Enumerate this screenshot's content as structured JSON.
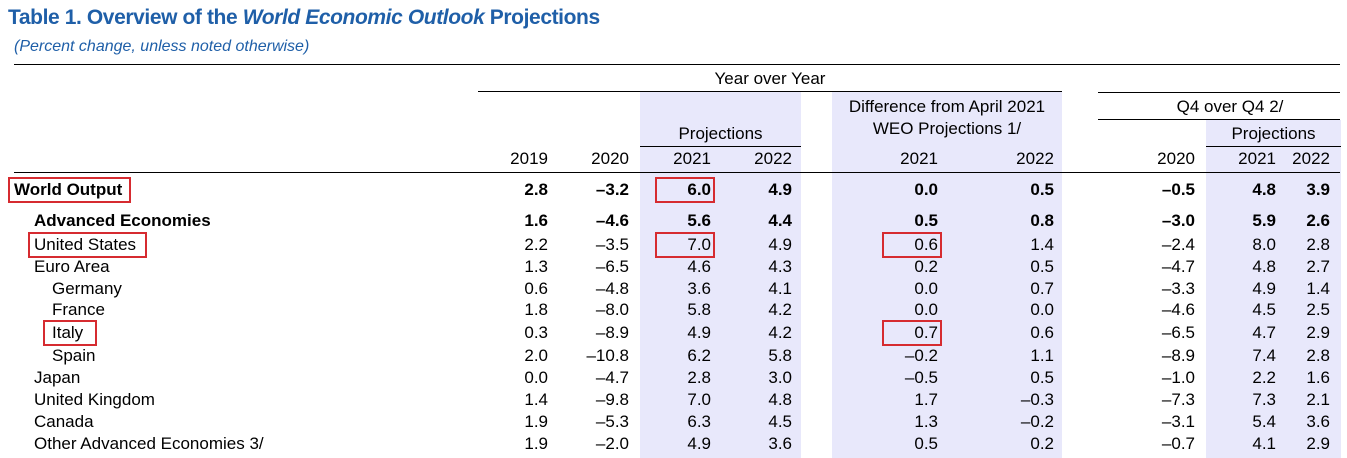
{
  "title": {
    "prefix": "Table 1. Overview of the ",
    "italic": "World Economic Outlook",
    "suffix": " Projections"
  },
  "subtitle": "(Percent change, unless noted otherwise)",
  "headers": {
    "yoy": "Year over Year",
    "diff_line1": "Difference from April 2021",
    "diff_line2": "WEO Projections 1/",
    "q4": "Q4 over Q4 2/",
    "projections": "Projections",
    "years": [
      "2019",
      "2020",
      "2021",
      "2022",
      "2021",
      "2022",
      "2020",
      "2021",
      "2022"
    ]
  },
  "rows": [
    {
      "label": "World Output",
      "bold": true,
      "indent": 0,
      "values": [
        "2.8",
        "–3.2",
        "6.0",
        "4.9",
        "0.0",
        "0.5",
        "–0.5",
        "4.8",
        "3.9"
      ]
    },
    {
      "label": "Advanced Economies",
      "bold": true,
      "indent": 1,
      "values": [
        "1.6",
        "–4.6",
        "5.6",
        "4.4",
        "0.5",
        "0.8",
        "–3.0",
        "5.9",
        "2.6"
      ]
    },
    {
      "label": "United States",
      "bold": false,
      "indent": 1,
      "values": [
        "2.2",
        "–3.5",
        "7.0",
        "4.9",
        "0.6",
        "1.4",
        "–2.4",
        "8.0",
        "2.8"
      ]
    },
    {
      "label": "Euro Area",
      "bold": false,
      "indent": 1,
      "values": [
        "1.3",
        "–6.5",
        "4.6",
        "4.3",
        "0.2",
        "0.5",
        "–4.7",
        "4.8",
        "2.7"
      ]
    },
    {
      "label": "Germany",
      "bold": false,
      "indent": 2,
      "values": [
        "0.6",
        "–4.8",
        "3.6",
        "4.1",
        "0.0",
        "0.7",
        "–3.3",
        "4.9",
        "1.4"
      ]
    },
    {
      "label": "France",
      "bold": false,
      "indent": 2,
      "values": [
        "1.8",
        "–8.0",
        "5.8",
        "4.2",
        "0.0",
        "0.0",
        "–4.6",
        "4.5",
        "2.5"
      ]
    },
    {
      "label": "Italy",
      "bold": false,
      "indent": 2,
      "values": [
        "0.3",
        "–8.9",
        "4.9",
        "4.2",
        "0.7",
        "0.6",
        "–6.5",
        "4.7",
        "2.9"
      ]
    },
    {
      "label": "Spain",
      "bold": false,
      "indent": 2,
      "values": [
        "2.0",
        "–10.8",
        "6.2",
        "5.8",
        "–0.2",
        "1.1",
        "–8.9",
        "7.4",
        "2.8"
      ]
    },
    {
      "label": "Japan",
      "bold": false,
      "indent": 1,
      "values": [
        "0.0",
        "–4.7",
        "2.8",
        "3.0",
        "–0.5",
        "0.5",
        "–1.0",
        "2.2",
        "1.6"
      ]
    },
    {
      "label": "United Kingdom",
      "bold": false,
      "indent": 1,
      "values": [
        "1.4",
        "–9.8",
        "7.0",
        "4.8",
        "1.7",
        "–0.3",
        "–7.3",
        "7.3",
        "2.1"
      ]
    },
    {
      "label": "Canada",
      "bold": false,
      "indent": 1,
      "values": [
        "1.9",
        "–5.3",
        "6.3",
        "4.5",
        "1.3",
        "–0.2",
        "–3.1",
        "5.4",
        "3.6"
      ]
    },
    {
      "label": "Other Advanced Economies 3/",
      "bold": false,
      "indent": 1,
      "values": [
        "1.9",
        "–2.0",
        "4.9",
        "3.6",
        "0.5",
        "0.2",
        "–0.7",
        "4.1",
        "2.9"
      ]
    }
  ],
  "highlights": {
    "labels": [
      "World Output",
      "United States",
      "Italy"
    ],
    "cells": [
      [
        0,
        2
      ],
      [
        2,
        2
      ],
      [
        2,
        4
      ],
      [
        6,
        4
      ]
    ],
    "color": "#d62b30"
  },
  "colors": {
    "title": "#1f5fa8",
    "shade": "#e8e8fb",
    "highlight": "#d62b30"
  }
}
